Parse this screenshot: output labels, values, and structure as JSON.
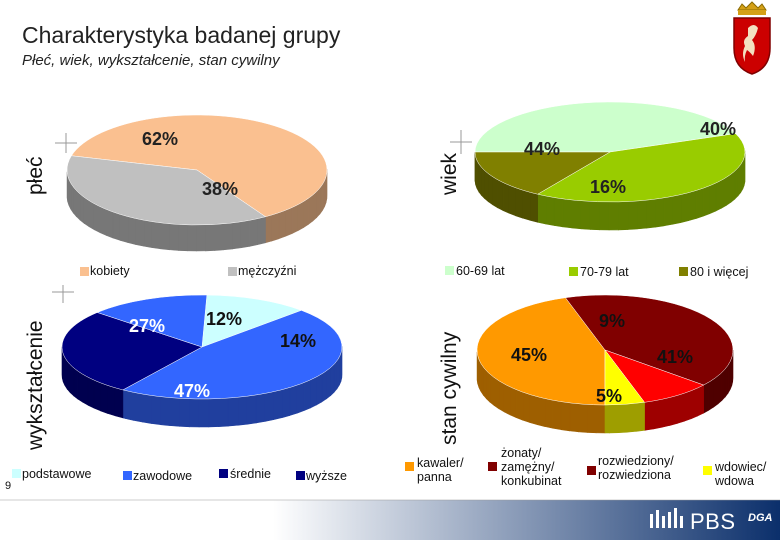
{
  "header": {
    "title": "Charakterystyka badanej grupy",
    "subtitle": "Płeć, wiek, wykształcenie, stan cywilny"
  },
  "footer": {
    "page_number": "9",
    "brand": "PBS",
    "brand_suffix": "DGA"
  },
  "colors": {
    "kobiety": "#fac090",
    "mezczyzni": "#c0c0c0",
    "wiek_6069": "#ccffcc",
    "wiek_7079": "#99cc00",
    "wiek_80": "#808000",
    "podstawowe": "#ccffff",
    "zawodowe": "#3366ff",
    "srednie": "#000080",
    "wyzsze": "#000080",
    "kawaler": "#ff9900",
    "zonaty": "#800000",
    "rozwiedziony": "#ff0000",
    "wdowiec": "#ffff00"
  },
  "chart_data": [
    {
      "type": "pie",
      "title": "płeć",
      "categories": [
        "kobiety",
        "mężczyźni"
      ],
      "values": [
        62,
        38
      ],
      "labels": [
        "62%",
        "38%"
      ],
      "legend": [
        "kobiety",
        "mężczyźni"
      ],
      "legend_position": "bottom"
    },
    {
      "type": "pie",
      "title": "wiek",
      "categories": [
        "60-69 lat",
        "70-79 lat",
        "80 i więcej"
      ],
      "values": [
        44,
        40,
        16
      ],
      "labels": [
        "44%",
        "40%",
        "16%"
      ],
      "legend": [
        "60-69 lat",
        "70-79 lat",
        "80 i więcej"
      ],
      "legend_position": "bottom"
    },
    {
      "type": "pie",
      "title": "wykształcenie",
      "categories": [
        "podstawowe",
        "zawodowe",
        "średnie",
        "wyższe"
      ],
      "values": [
        12,
        47,
        27,
        14
      ],
      "labels": [
        "12%",
        "47%",
        "27%",
        "14%"
      ],
      "legend": [
        "podstawowe",
        "zawodowe",
        "średnie",
        "wyższe"
      ],
      "legend_position": "bottom"
    },
    {
      "type": "pie",
      "title": "stan cywilny",
      "categories": [
        "kawaler/ panna",
        "żonaty/ zamężny/ konkubinat",
        "rozwiedziony/ rozwiedziona",
        "wdowiec/ wdowa"
      ],
      "values": [
        45,
        41,
        9,
        5
      ],
      "labels": [
        "45%",
        "41%",
        "9%",
        "5%"
      ],
      "legend": [
        "kawaler/ panna",
        "żonaty/ zamężny/ konkubinat",
        "rozwiedziony/ rozwiedziona",
        "wdowiec/ wdowa"
      ],
      "legend_position": "bottom"
    }
  ]
}
